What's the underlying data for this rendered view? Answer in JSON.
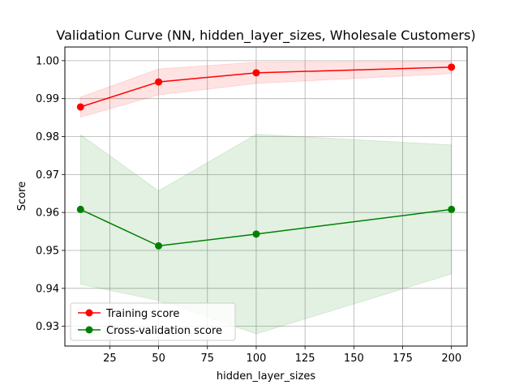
{
  "chart_data": {
    "type": "line",
    "title": "Validation Curve (NN, hidden_layer_sizes, Wholesale Customers)",
    "xlabel": "hidden_layer_sizes",
    "ylabel": "Score",
    "x": [
      10,
      50,
      100,
      200
    ],
    "xlim": [
      2,
      208
    ],
    "ylim": [
      0.9248,
      1.0036
    ],
    "xticks": [
      25,
      50,
      75,
      100,
      125,
      150,
      175,
      200
    ],
    "xtick_labels": [
      "25",
      "50",
      "75",
      "100",
      "125",
      "150",
      "175",
      "200"
    ],
    "yticks": [
      0.93,
      0.94,
      0.95,
      0.96,
      0.97,
      0.98,
      0.99,
      1.0
    ],
    "ytick_labels": [
      "0.93",
      "0.94",
      "0.95",
      "0.96",
      "0.97",
      "0.98",
      "0.99",
      "1.00"
    ],
    "grid": true,
    "legend_position": "lower-left",
    "series": [
      {
        "name": "Training score",
        "color": "#ff0000",
        "values": [
          0.9878,
          0.9944,
          0.9968,
          0.9983
        ],
        "band_upper": [
          0.9904,
          0.9978,
          0.9996,
          0.9998
        ],
        "band_lower": [
          0.9851,
          0.991,
          0.994,
          0.9966
        ]
      },
      {
        "name": "Cross-validation score",
        "color": "#008000",
        "values": [
          0.9608,
          0.9512,
          0.9543,
          0.9608
        ],
        "band_upper": [
          0.9805,
          0.9657,
          0.9806,
          0.9778
        ],
        "band_lower": [
          0.9411,
          0.9368,
          0.928,
          0.9438
        ]
      }
    ]
  }
}
